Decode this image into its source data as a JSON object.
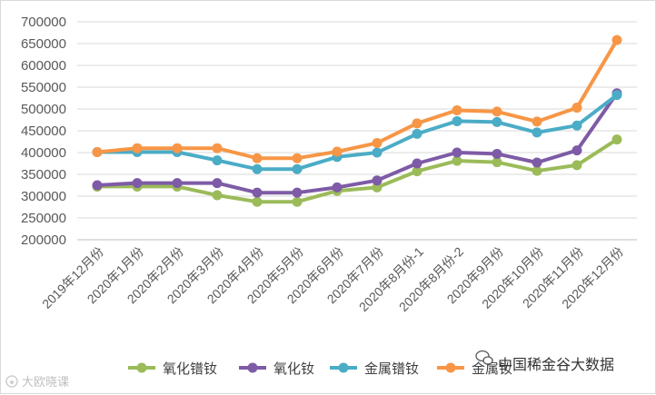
{
  "chart_data": {
    "type": "line",
    "title": "",
    "xlabel": "",
    "ylabel": "",
    "ylim": [
      200000,
      700000
    ],
    "y_ticks": [
      200000,
      250000,
      300000,
      350000,
      400000,
      450000,
      500000,
      550000,
      600000,
      650000,
      700000
    ],
    "grid": true,
    "legend_position": "bottom",
    "categories": [
      "2019年12月份",
      "2020年1月份",
      "2020年2月份",
      "2020年3月份",
      "2020年4月份",
      "2020年5月份",
      "2020年6月份",
      "2020年7月份",
      "2020年8月份-1",
      "2020年8月份-2",
      "2020年9月份",
      "2020年10月份",
      "2020年11月份",
      "2020年12月份"
    ],
    "series": [
      {
        "name": "氧化镨钕",
        "color": "#9BBB59",
        "values": [
          322000,
          322000,
          322000,
          302000,
          287000,
          287000,
          312000,
          320000,
          357000,
          381000,
          378000,
          358000,
          371000,
          430000
        ]
      },
      {
        "name": "氧化钕",
        "color": "#7E5BA6",
        "values": [
          325000,
          330000,
          330000,
          330000,
          308000,
          308000,
          320000,
          336000,
          375000,
          400000,
          397000,
          377000,
          405000,
          536000
        ]
      },
      {
        "name": "金属镨钕",
        "color": "#4BACC6",
        "values": [
          401000,
          401000,
          401000,
          382000,
          362000,
          362000,
          390000,
          400000,
          443000,
          472000,
          470000,
          446000,
          462000,
          532000
        ]
      },
      {
        "name": "金属钕",
        "color": "#F79646",
        "values": [
          401000,
          410000,
          410000,
          410000,
          387000,
          387000,
          402000,
          422000,
          467000,
          497000,
          494000,
          471000,
          503000,
          658000
        ]
      }
    ]
  },
  "watermarks": {
    "source": "中国稀金谷大数据",
    "bottom_left": "大欧晓课"
  }
}
